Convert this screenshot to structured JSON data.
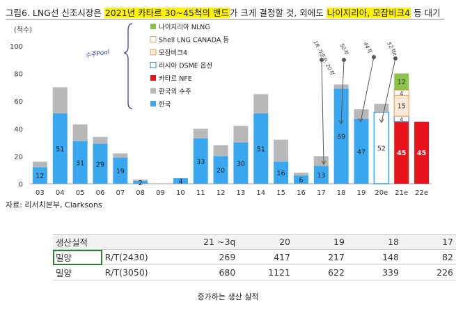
{
  "title": {
    "prefix": "그림6. LNG선 신조시장은 ",
    "highlight1": "2021년 카타르 30~45척의 밴드",
    "middle": "가 크게 결정할 것, 외에도 ",
    "highlight2": "나이지리아, 모잠비크4",
    "suffix": " 등 대기"
  },
  "chart_data": {
    "type": "bar",
    "ylabel": "(척수)",
    "ylim": [
      0,
      100
    ],
    "yticks": [
      0,
      20,
      40,
      60,
      80,
      100
    ],
    "grid": false,
    "legend_position": "top-center",
    "categories": [
      "03",
      "04",
      "05",
      "06",
      "07",
      "08",
      "09",
      "10",
      "11",
      "12",
      "13",
      "14",
      "15",
      "16",
      "17",
      "18",
      "19",
      "20e",
      "21e",
      "22e"
    ],
    "series": [
      {
        "name": "나이지리아 NLNG",
        "color": "#8bc34a",
        "values": [
          0,
          0,
          0,
          0,
          0,
          0,
          0,
          0,
          0,
          0,
          0,
          0,
          0,
          0,
          0,
          0,
          0,
          0,
          12,
          0
        ]
      },
      {
        "name": "Shell LNG CANADA 등",
        "color": "#f0a060",
        "style": "outline",
        "values": [
          0,
          0,
          0,
          0,
          0,
          0,
          0,
          0,
          0,
          0,
          0,
          0,
          0,
          0,
          0,
          0,
          0,
          0,
          4,
          0
        ]
      },
      {
        "name": "모잠비크4",
        "color": "#f0a060",
        "style": "outline-light",
        "values": [
          0,
          0,
          0,
          0,
          0,
          0,
          0,
          0,
          0,
          0,
          0,
          0,
          0,
          0,
          0,
          0,
          0,
          0,
          15,
          0
        ]
      },
      {
        "name": "러시아 DSME 옵션",
        "color": "#2a8ad4",
        "style": "outline",
        "values": [
          0,
          0,
          0,
          0,
          0,
          0,
          0,
          0,
          0,
          0,
          0,
          0,
          0,
          0,
          0,
          0,
          0,
          0,
          4,
          0
        ]
      },
      {
        "name": "카타르 NFE",
        "color": "#e8141c",
        "values": [
          0,
          0,
          0,
          0,
          0,
          0,
          0,
          0,
          0,
          0,
          0,
          0,
          0,
          0,
          0,
          0,
          0,
          0,
          45,
          45
        ]
      },
      {
        "name": "한국외 수주",
        "color": "#b8b8b8",
        "values": [
          4,
          19,
          12,
          5,
          3,
          1,
          0,
          0,
          7,
          8,
          12,
          14,
          16,
          2,
          7,
          3,
          7,
          6,
          0,
          0
        ]
      },
      {
        "name": "한국",
        "color": "#3aa8f0",
        "values": [
          12,
          51,
          31,
          29,
          19,
          2,
          0,
          4,
          33,
          20,
          30,
          51,
          16,
          6,
          13,
          69,
          47,
          52,
          0,
          0
        ]
      }
    ],
    "data_labels": [
      {
        "category": "03",
        "text": "12"
      },
      {
        "category": "04",
        "text": "51"
      },
      {
        "category": "05",
        "text": "31"
      },
      {
        "category": "06",
        "text": "29"
      },
      {
        "category": "07",
        "text": "19"
      },
      {
        "category": "08",
        "text": "2"
      },
      {
        "category": "10",
        "text": "4"
      },
      {
        "category": "11",
        "text": "33"
      },
      {
        "category": "12",
        "text": "20"
      },
      {
        "category": "13",
        "text": "30"
      },
      {
        "category": "14",
        "text": "51"
      },
      {
        "category": "15",
        "text": "16"
      },
      {
        "category": "16",
        "text": "6"
      },
      {
        "category": "17",
        "text": "13"
      },
      {
        "category": "18",
        "text": "69"
      },
      {
        "category": "19",
        "text": "47"
      },
      {
        "category": "20e",
        "text": "52"
      }
    ],
    "stack_labels_21e": [
      "45",
      "4",
      "15",
      "4",
      "12"
    ],
    "stack_labels_22e": [
      "45"
    ],
    "annotations": {
      "bracket_note": "수주Pool",
      "notes": [
        {
          "category": "17",
          "text": "1R 기준은, 20척"
        },
        {
          "category": "18",
          "text": "50척"
        },
        {
          "category": "19",
          "text": "44척"
        },
        {
          "category": "20e",
          "text": "52척e"
        }
      ]
    }
  },
  "source": "자료: 리서치본부, Clarksons",
  "table": {
    "header": {
      "label": "생산실적",
      "cols": [
        "21 ~3q",
        "20",
        "19",
        "18",
        "17"
      ]
    },
    "rows": [
      {
        "label": "밀양",
        "unit": "R/T(2430)",
        "values": [
          "269",
          "417",
          "217",
          "148",
          "82"
        ]
      },
      {
        "label": "밀양",
        "unit": "R/T(3050)",
        "values": [
          "680",
          "1121",
          "622",
          "339",
          "226"
        ]
      }
    ]
  },
  "caption": "증가하는 생산 실적"
}
